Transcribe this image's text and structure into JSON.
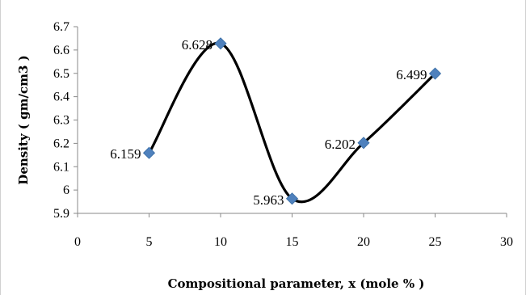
{
  "chart_data": {
    "type": "line",
    "title": "",
    "xlabel": "Compositional parameter, x (mole % )",
    "ylabel": "Density ( gm/cm3 )",
    "xlim": [
      0,
      30
    ],
    "ylim": [
      5.9,
      6.7
    ],
    "x_ticks": [
      0,
      5,
      10,
      15,
      20,
      25,
      30
    ],
    "x_tick_labels": [
      "0",
      "5",
      "10",
      "15",
      "20",
      "25",
      "30"
    ],
    "y_ticks": [
      5.9,
      6,
      6.1,
      6.2,
      6.3,
      6.4,
      6.5,
      6.6,
      6.7
    ],
    "y_tick_labels": [
      "5.9",
      "6",
      "6.1",
      "6.2",
      "6.3",
      "6.4",
      "6.5",
      "6.6",
      "6.7"
    ],
    "grid": false,
    "smooth": true,
    "series": [
      {
        "x": [
          5,
          10,
          15,
          20,
          25
        ],
        "values": [
          6.159,
          6.628,
          5.963,
          6.202,
          6.499
        ],
        "data_labels": [
          "6.159",
          "6.628",
          "5.963",
          "6.202",
          "6.499"
        ],
        "line_color": "#000000",
        "marker": "diamond",
        "marker_color": "#4F81BD"
      }
    ]
  }
}
